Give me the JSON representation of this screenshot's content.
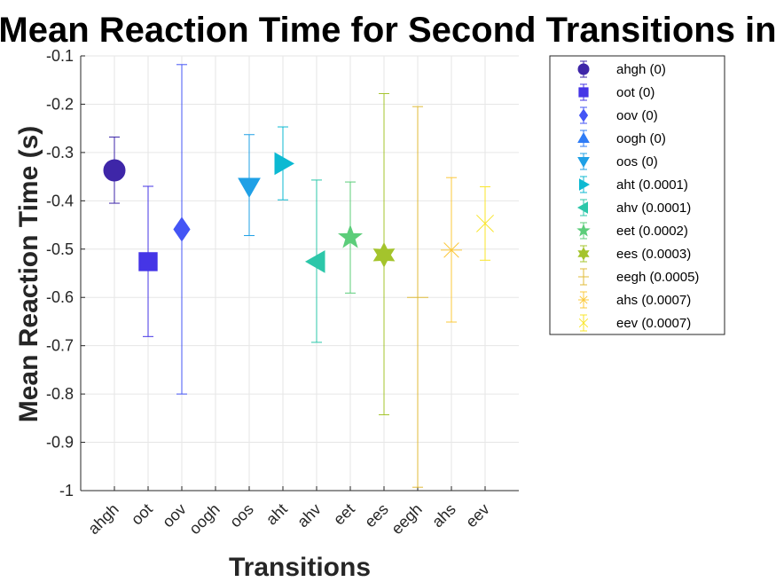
{
  "chart_data": {
    "type": "scatter",
    "title": "Mean Reaction Time for Second Transitions in",
    "xlabel": "Transitions",
    "ylabel": "Mean Reaction Time (s)",
    "ylim": [
      -1,
      -0.1
    ],
    "yticks": [
      -0.1,
      -0.2,
      -0.3,
      -0.4,
      -0.5,
      -0.6,
      -0.7,
      -0.8,
      -0.9,
      -1
    ],
    "ytick_labels": [
      "-0.1",
      "-0.2",
      "-0.3",
      "-0.4",
      "-0.5",
      "-0.6",
      "-0.7",
      "-0.8",
      "-0.9",
      "-1"
    ],
    "grid": true,
    "legend_position": "outside-top-right",
    "categories": [
      "ahgh",
      "oot",
      "oov",
      "oogh",
      "oos",
      "aht",
      "ahv",
      "eet",
      "ees",
      "eegh",
      "ahs",
      "eev"
    ],
    "series": [
      {
        "name": "ahgh (0)",
        "category": "ahgh",
        "mean": -0.337,
        "lower": -0.405,
        "upper": -0.268,
        "marker": "circle",
        "color": "#3e26a8"
      },
      {
        "name": "oot (0)",
        "category": "oot",
        "mean": -0.526,
        "lower": -0.681,
        "upper": -0.37,
        "marker": "square",
        "color": "#4535e6"
      },
      {
        "name": "oov (0)",
        "category": "oov",
        "mean": -0.459,
        "lower": -0.8,
        "upper": -0.118,
        "marker": "diamond",
        "color": "#4455f5"
      },
      {
        "name": "oogh (0)",
        "category": "oogh",
        "mean": null,
        "lower": null,
        "upper": null,
        "marker": "triangle-up",
        "color": "#2f7cf6"
      },
      {
        "name": "oos (0)",
        "category": "oos",
        "mean": -0.37,
        "lower": -0.472,
        "upper": -0.263,
        "marker": "triangle-down",
        "color": "#1fa0e6"
      },
      {
        "name": "aht (0.0001)",
        "category": "aht",
        "mean": -0.323,
        "lower": -0.398,
        "upper": -0.247,
        "marker": "triangle-right",
        "color": "#0cb9d2"
      },
      {
        "name": "ahv (0.0001)",
        "category": "ahv",
        "mean": -0.526,
        "lower": -0.693,
        "upper": -0.357,
        "marker": "triangle-left",
        "color": "#2cc7a9"
      },
      {
        "name": "eet (0.0002)",
        "category": "eet",
        "mean": -0.476,
        "lower": -0.591,
        "upper": -0.361,
        "marker": "pentagram",
        "color": "#5ccd7a"
      },
      {
        "name": "ees (0.0003)",
        "category": "ees",
        "mean": -0.512,
        "lower": -0.843,
        "upper": -0.178,
        "marker": "hexagram",
        "color": "#a4c42c"
      },
      {
        "name": "eegh (0.0005)",
        "category": "eegh",
        "mean": -0.6,
        "lower": -0.993,
        "upper": -0.205,
        "marker": "dash",
        "color": "#e0bb3a"
      },
      {
        "name": "ahs (0.0007)",
        "category": "ahs",
        "mean": -0.502,
        "lower": -0.651,
        "upper": -0.352,
        "marker": "asterisk",
        "color": "#fbc83b"
      },
      {
        "name": "eev (0.0007)",
        "category": "eev",
        "mean": -0.447,
        "lower": -0.523,
        "upper": -0.371,
        "marker": "x",
        "color": "#f9e52a"
      }
    ]
  }
}
